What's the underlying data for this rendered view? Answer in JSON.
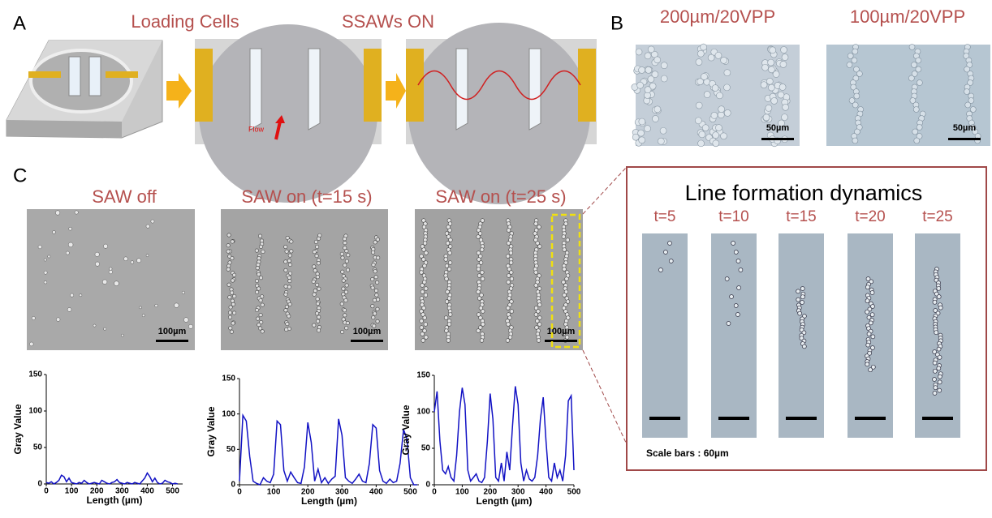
{
  "panels": {
    "a": {
      "label": "A",
      "titles": [
        "Loading Cells",
        "SSAWs ON"
      ],
      "flow_label": "Flow"
    },
    "b": {
      "label": "B",
      "images": [
        {
          "title": "200µm/20VPP",
          "scale_bar": "50µm"
        },
        {
          "title": "100µm/20VPP",
          "scale_bar": "50µm"
        }
      ]
    },
    "c": {
      "label": "C",
      "micrographs": [
        {
          "title": "SAW off",
          "scale_bar": "100µm"
        },
        {
          "title": "SAW on (t=15 s)",
          "scale_bar": "100µm"
        },
        {
          "title": "SAW on (t=25 s)",
          "scale_bar": "100µm"
        }
      ],
      "inset": {
        "title": "Line formation dynamics",
        "frames": [
          "t=5",
          "t=10",
          "t=15",
          "t=20",
          "t=25"
        ],
        "note": "Scale bars : 60µm"
      }
    }
  },
  "chart_data": [
    {
      "type": "line",
      "x_label": "Length (µm)",
      "y_label": "Gray Value",
      "color": "#1212c4",
      "xlim": [
        0,
        540
      ],
      "ylim": [
        0,
        150
      ],
      "xticks": [
        0,
        100,
        200,
        300,
        400,
        500
      ],
      "yticks": [
        0,
        50,
        100,
        150
      ],
      "x": [
        0,
        10,
        20,
        30,
        40,
        50,
        60,
        70,
        80,
        90,
        100,
        110,
        120,
        130,
        140,
        150,
        160,
        170,
        180,
        190,
        200,
        210,
        220,
        230,
        240,
        250,
        260,
        270,
        280,
        290,
        300,
        310,
        320,
        330,
        340,
        350,
        360,
        370,
        380,
        390,
        400,
        410,
        420,
        430,
        440,
        450,
        460,
        470,
        480,
        490,
        500,
        510,
        520
      ],
      "values": [
        2,
        1,
        3,
        0,
        2,
        5,
        12,
        10,
        3,
        8,
        2,
        1,
        0,
        2,
        1,
        5,
        2,
        0,
        1,
        2,
        1,
        0,
        5,
        3,
        1,
        0,
        2,
        3,
        6,
        2,
        1,
        0,
        2,
        1,
        0,
        2,
        1,
        0,
        4,
        8,
        15,
        10,
        3,
        8,
        2,
        0,
        1,
        5,
        3,
        2,
        0,
        1,
        0
      ]
    },
    {
      "type": "line",
      "x_label": "Length (µm)",
      "y_label": "Gray Value",
      "color": "#1212c4",
      "xlim": [
        0,
        525
      ],
      "ylim": [
        0,
        150
      ],
      "xticks": [
        0,
        100,
        200,
        300,
        400,
        500
      ],
      "yticks": [
        0,
        50,
        100,
        150
      ],
      "x": [
        0,
        10,
        20,
        30,
        40,
        50,
        60,
        70,
        80,
        90,
        100,
        110,
        120,
        130,
        140,
        150,
        160,
        170,
        180,
        190,
        200,
        210,
        220,
        230,
        240,
        250,
        260,
        270,
        280,
        290,
        300,
        310,
        320,
        330,
        340,
        350,
        360,
        370,
        380,
        390,
        400,
        410,
        420,
        430,
        440,
        450,
        460,
        470,
        480,
        490,
        500,
        510,
        520
      ],
      "values": [
        5,
        98,
        90,
        40,
        5,
        2,
        0,
        10,
        5,
        3,
        15,
        90,
        85,
        20,
        5,
        18,
        10,
        3,
        2,
        25,
        88,
        60,
        5,
        22,
        3,
        10,
        2,
        8,
        12,
        93,
        70,
        10,
        5,
        2,
        8,
        15,
        5,
        3,
        30,
        85,
        80,
        20,
        5,
        2,
        8,
        3,
        5,
        30,
        78,
        65,
        10,
        0,
        0
      ]
    },
    {
      "type": "line",
      "x_label": "Length (µm)",
      "y_label": "Gray Value",
      "color": "#1212c4",
      "xlim": [
        0,
        500
      ],
      "ylim": [
        0,
        150
      ],
      "xticks": [
        0,
        100,
        200,
        300,
        400,
        500
      ],
      "yticks": [
        0,
        50,
        100,
        150
      ],
      "x": [
        0,
        10,
        20,
        30,
        40,
        50,
        60,
        70,
        80,
        90,
        100,
        110,
        120,
        130,
        140,
        150,
        160,
        170,
        180,
        190,
        200,
        210,
        220,
        230,
        240,
        250,
        260,
        270,
        280,
        290,
        300,
        310,
        320,
        330,
        340,
        350,
        360,
        370,
        380,
        390,
        400,
        410,
        420,
        430,
        440,
        450,
        460,
        470,
        480,
        490,
        500
      ],
      "values": [
        100,
        128,
        60,
        20,
        15,
        25,
        10,
        5,
        40,
        100,
        133,
        110,
        20,
        5,
        10,
        15,
        5,
        3,
        10,
        60,
        125,
        90,
        10,
        5,
        30,
        5,
        45,
        20,
        80,
        135,
        110,
        30,
        5,
        20,
        8,
        5,
        10,
        40,
        90,
        120,
        60,
        10,
        5,
        30,
        10,
        20,
        5,
        40,
        115,
        122,
        20
      ]
    }
  ]
}
